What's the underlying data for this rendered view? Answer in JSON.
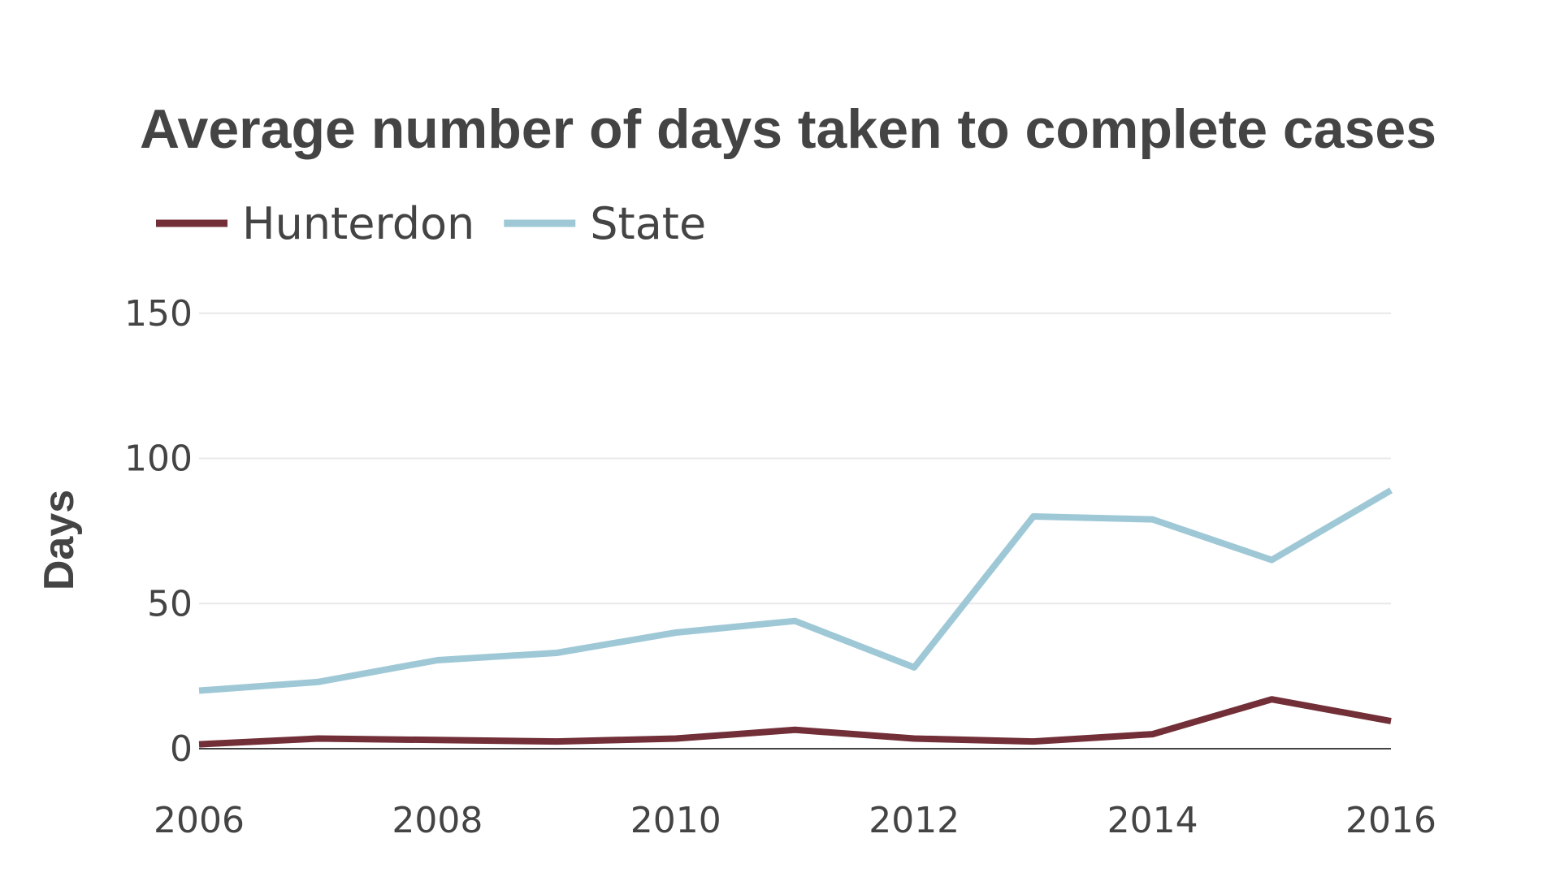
{
  "chart_data": {
    "type": "line",
    "title": "Average number of days taken to complete cases",
    "xlabel": "",
    "ylabel": "Days",
    "x": [
      2006,
      2007,
      2008,
      2009,
      2010,
      2011,
      2012,
      2013,
      2014,
      2015,
      2016
    ],
    "xlim": [
      2006,
      2016
    ],
    "ylim": [
      0,
      160
    ],
    "x_ticks": [
      "2006",
      "2008",
      "2010",
      "2012",
      "2014",
      "2016"
    ],
    "x_tick_values": [
      2006,
      2008,
      2010,
      2012,
      2014,
      2016
    ],
    "y_ticks": [
      "0",
      "50",
      "100",
      "150"
    ],
    "y_tick_values": [
      0,
      50,
      100,
      150
    ],
    "grid": true,
    "legend_position": "top-left",
    "series": [
      {
        "name": "Hunterdon",
        "color": "#722f37",
        "values": [
          1.5,
          3.5,
          3,
          2.5,
          3.5,
          6.5,
          3.5,
          2.5,
          5,
          17,
          9.5
        ]
      },
      {
        "name": "State",
        "color": "#9fc8d6",
        "values": [
          20,
          23,
          30.5,
          33,
          40,
          44,
          28,
          80,
          79,
          65,
          89
        ]
      }
    ]
  }
}
